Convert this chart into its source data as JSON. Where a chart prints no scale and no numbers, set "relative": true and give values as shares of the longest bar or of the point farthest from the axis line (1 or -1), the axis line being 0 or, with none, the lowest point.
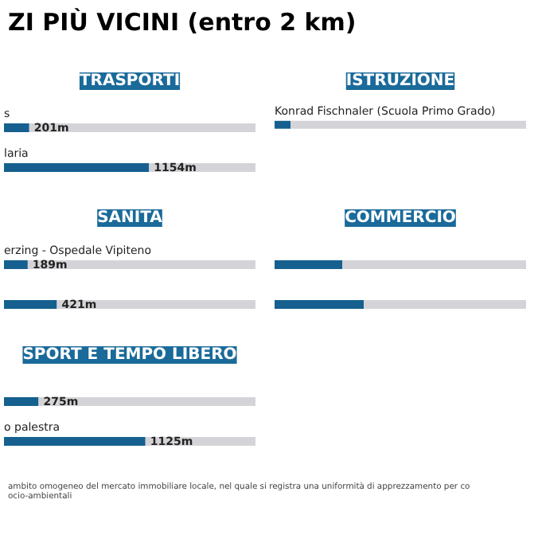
{
  "chart_data": [
    {
      "type": "bar",
      "orientation": "horizontal",
      "stacked": true,
      "title": "TRASPORTI",
      "annotations": [
        "ZI PIÙ VICINI (entro 2 km)"
      ],
      "categories": [
        "s",
        "laria"
      ],
      "xlim": [
        0,
        2000
      ],
      "tick_labels": false,
      "grid": false,
      "series": [
        {
          "color": "#15608f",
          "values": [
            201,
            1154
          ],
          "value_labels": [
            "201m",
            "1154m"
          ]
        },
        {
          "color": "#d4d4d8",
          "values": [
            1799,
            846
          ]
        }
      ]
    },
    {
      "type": "bar",
      "orientation": "horizontal",
      "stacked": true,
      "relative": true,
      "title": "ISTRUZIONE",
      "categories": [
        "Konrad Fischnaler (Scuola Primo Grado)"
      ],
      "tick_labels": false,
      "grid": false,
      "series": [
        {
          "color": "#15608f",
          "values": [
            0.064
          ]
        },
        {
          "color": "#d4d4d8",
          "values": [
            0.936
          ]
        }
      ]
    },
    {
      "type": "bar",
      "orientation": "horizontal",
      "stacked": true,
      "title": "SANITÀ",
      "categories": [
        null,
        null
      ],
      "annotations": [
        "erzing - Ospedale Vipiteno"
      ],
      "xlim": [
        0,
        2000
      ],
      "tick_labels": false,
      "grid": false,
      "series": [
        {
          "color": "#15608f",
          "values": [
            189,
            421
          ],
          "value_labels": [
            "189m",
            "421m"
          ]
        },
        {
          "color": "#d4d4d8",
          "values": [
            1811,
            1579
          ]
        }
      ]
    },
    {
      "type": "bar",
      "orientation": "horizontal",
      "stacked": true,
      "relative": true,
      "title": "COMMERCIO",
      "categories": [
        null,
        null
      ],
      "tick_labels": false,
      "grid": false,
      "series": [
        {
          "color": "#15608f",
          "values": [
            0.27,
            0.355
          ]
        },
        {
          "color": "#d4d4d8",
          "values": [
            0.73,
            0.645
          ]
        }
      ]
    },
    {
      "type": "bar",
      "orientation": "horizontal",
      "stacked": true,
      "title": "SPORT E TEMPO LIBERO",
      "categories": [
        null,
        null
      ],
      "annotations": [
        "o palestra",
        "ambito omogeneo del mercato immobiliare locale, nel quale si registra una uniformità di apprezzamento per co",
        "ocio-ambientali"
      ],
      "xlim": [
        0,
        2000
      ],
      "tick_labels": false,
      "grid": false,
      "series": [
        {
          "color": "#15608f",
          "values": [
            275,
            1125
          ],
          "value_labels": [
            "275m",
            "1125m"
          ]
        },
        {
          "color": "#d4d4d8",
          "values": [
            1725,
            875
          ]
        }
      ]
    }
  ]
}
